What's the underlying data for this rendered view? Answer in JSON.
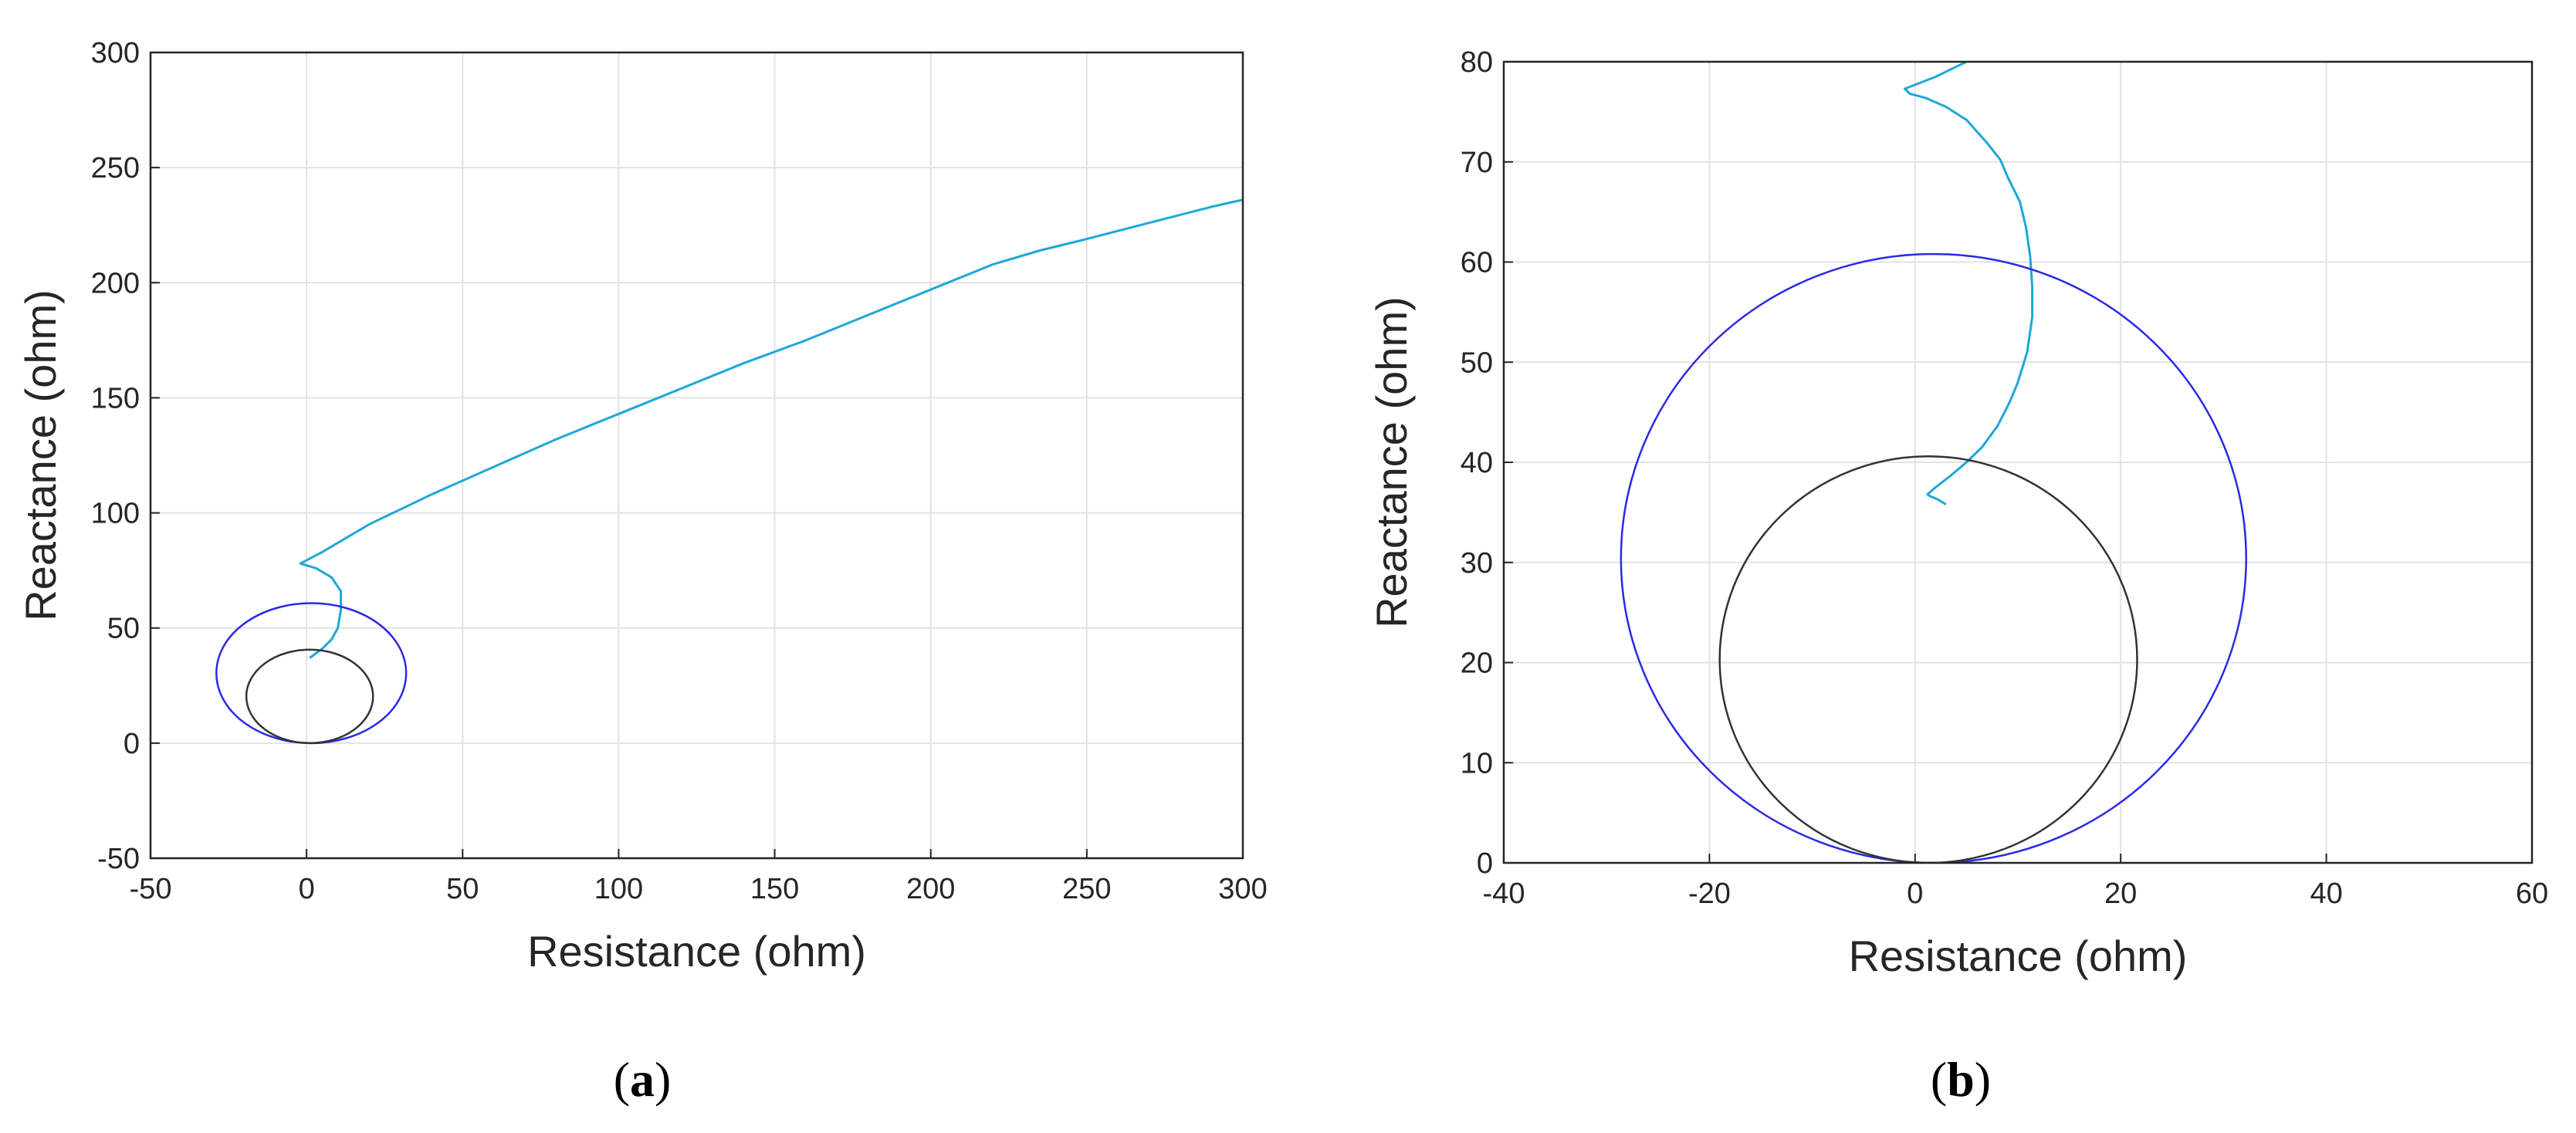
{
  "chart_data": [
    {
      "type": "line",
      "caption_letter": "a",
      "xlabel": "Resistance (ohm)",
      "ylabel": "Reactance (ohm)",
      "xlim": [
        -50,
        300
      ],
      "ylim": [
        -50,
        300
      ],
      "xticks": [
        -50,
        0,
        50,
        100,
        150,
        200,
        250,
        300
      ],
      "yticks": [
        -50,
        0,
        50,
        100,
        150,
        200,
        250,
        300
      ],
      "grid": true,
      "colors": {
        "trajectory": "#1ea7d9",
        "outer_circle": "#2a2ae6",
        "inner_circle": "#333333"
      },
      "series": [
        {
          "kind": "trajectory",
          "points": [
            [
              300,
              236
            ],
            [
              290,
              233
            ],
            [
              270,
              226
            ],
            [
              250,
              219
            ],
            [
              235,
              214
            ],
            [
              220,
              208
            ],
            [
              200,
              197
            ],
            [
              180,
              186
            ],
            [
              160,
              175
            ],
            [
              140,
              165
            ],
            [
              120,
              154
            ],
            [
              100,
              143
            ],
            [
              80,
              132
            ],
            [
              60,
              120
            ],
            [
              40,
              108
            ],
            [
              20,
              95
            ],
            [
              5,
              83
            ],
            [
              -2,
              78
            ],
            [
              3,
              76
            ],
            [
              8,
              72
            ],
            [
              11,
              66
            ],
            [
              11,
              58
            ],
            [
              10,
              50
            ],
            [
              8,
              45
            ],
            [
              5,
              41
            ],
            [
              2,
              38
            ],
            [
              1,
              37
            ]
          ]
        },
        {
          "kind": "circle",
          "center": [
            1.5,
            30.4
          ],
          "radius": 30.4
        },
        {
          "kind": "circle",
          "center": [
            1.0,
            20.3
          ],
          "radius": 20.3
        }
      ]
    },
    {
      "type": "line",
      "caption_letter": "b",
      "xlabel": "Resistance (ohm)",
      "ylabel": "Reactance (ohm)",
      "xlim": [
        -40,
        60
      ],
      "ylim": [
        0,
        80
      ],
      "xticks": [
        -40,
        -20,
        0,
        20,
        40,
        60
      ],
      "yticks": [
        0,
        10,
        20,
        30,
        40,
        50,
        60,
        70,
        80
      ],
      "grid": true,
      "colors": {
        "trajectory": "#1ea7d9",
        "outer_circle": "#2a2ae6",
        "inner_circle": "#333333"
      },
      "series": [
        {
          "kind": "trajectory",
          "points": [
            [
              5,
              80
            ],
            [
              2,
              78.5
            ],
            [
              -1,
              77.3
            ],
            [
              -0.5,
              76.8
            ],
            [
              1,
              76.4
            ],
            [
              3,
              75.5
            ],
            [
              5,
              74.2
            ],
            [
              7,
              71.9
            ],
            [
              8.3,
              70.2
            ],
            [
              9,
              68.5
            ],
            [
              10.2,
              66
            ],
            [
              10.8,
              63.4
            ],
            [
              11.2,
              60.5
            ],
            [
              11.4,
              57.5
            ],
            [
              11.4,
              54.5
            ],
            [
              10.9,
              51
            ],
            [
              10,
              48
            ],
            [
              9.2,
              46
            ],
            [
              8,
              43.6
            ],
            [
              6.5,
              41.5
            ],
            [
              5,
              40
            ],
            [
              3.5,
              38.7
            ],
            [
              2,
              37.5
            ],
            [
              1.2,
              36.8
            ],
            [
              1.5,
              36.6
            ],
            [
              2.2,
              36.3
            ],
            [
              3,
              35.8
            ]
          ]
        },
        {
          "kind": "circle",
          "center": [
            1.8,
            30.4
          ],
          "radius": 30.4
        },
        {
          "kind": "circle",
          "center": [
            1.3,
            20.3
          ],
          "radius": 20.3
        }
      ]
    }
  ]
}
